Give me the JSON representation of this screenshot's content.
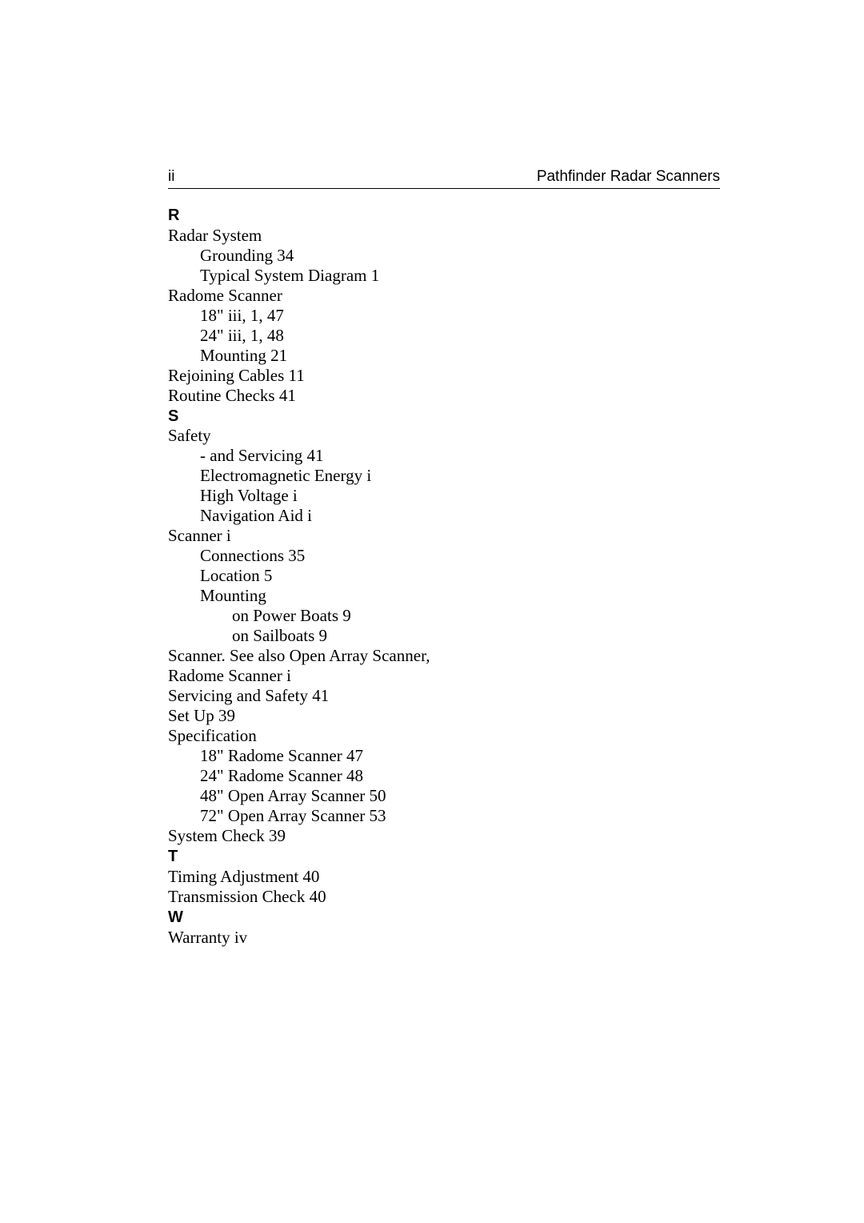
{
  "header": {
    "page_number": "ii",
    "title": "Pathfinder Radar Scanners"
  },
  "colors": {
    "text": "#000000",
    "background": "#ffffff",
    "rule": "#000000"
  },
  "typography": {
    "body_font": "Times New Roman",
    "heading_font": "Arial",
    "body_size_pt": 16,
    "heading_size_pt": 15,
    "letter_weight": 700
  },
  "index": [
    {
      "type": "letter",
      "text": "R"
    },
    {
      "type": "entry",
      "level": 0,
      "text": "Radar System"
    },
    {
      "type": "entry",
      "level": 1,
      "text": "Grounding 34"
    },
    {
      "type": "entry",
      "level": 1,
      "text": "Typical System Diagram 1"
    },
    {
      "type": "entry",
      "level": 0,
      "text": "Radome Scanner"
    },
    {
      "type": "entry",
      "level": 1,
      "text": "18\" iii, 1, 47"
    },
    {
      "type": "entry",
      "level": 1,
      "text": "24\" iii, 1, 48"
    },
    {
      "type": "entry",
      "level": 1,
      "text": "Mounting 21"
    },
    {
      "type": "entry",
      "level": 0,
      "text": "Rejoining Cables 11"
    },
    {
      "type": "entry",
      "level": 0,
      "text": "Routine Checks 41"
    },
    {
      "type": "letter",
      "text": "S"
    },
    {
      "type": "entry",
      "level": 0,
      "text": "Safety"
    },
    {
      "type": "entry",
      "level": 1,
      "text": "- and Servicing 41"
    },
    {
      "type": "entry",
      "level": 1,
      "text": "Electromagnetic Energy i"
    },
    {
      "type": "entry",
      "level": 1,
      "text": "High Voltage i"
    },
    {
      "type": "entry",
      "level": 1,
      "text": "Navigation Aid i"
    },
    {
      "type": "entry",
      "level": 0,
      "text": "Scanner i"
    },
    {
      "type": "entry",
      "level": 1,
      "text": "Connections 35"
    },
    {
      "type": "entry",
      "level": 1,
      "text": "Location 5"
    },
    {
      "type": "entry",
      "level": 1,
      "text": "Mounting"
    },
    {
      "type": "entry",
      "level": 2,
      "text": "on Power Boats 9"
    },
    {
      "type": "entry",
      "level": 2,
      "text": "on Sailboats 9"
    },
    {
      "type": "entry",
      "level": 0,
      "text": "Scanner. See also Open Array Scanner,"
    },
    {
      "type": "entry",
      "level": 0,
      "text": "Radome Scanner i"
    },
    {
      "type": "entry",
      "level": 0,
      "text": "Servicing and Safety 41"
    },
    {
      "type": "entry",
      "level": 0,
      "text": "Set Up 39"
    },
    {
      "type": "entry",
      "level": 0,
      "text": "Specification"
    },
    {
      "type": "entry",
      "level": 1,
      "text": "18\" Radome Scanner 47"
    },
    {
      "type": "entry",
      "level": 1,
      "text": "24\" Radome Scanner 48"
    },
    {
      "type": "entry",
      "level": 1,
      "text": "48\" Open Array Scanner 50"
    },
    {
      "type": "entry",
      "level": 1,
      "text": "72\" Open Array Scanner 53"
    },
    {
      "type": "entry",
      "level": 0,
      "text": "System Check 39"
    },
    {
      "type": "letter",
      "text": "T"
    },
    {
      "type": "entry",
      "level": 0,
      "text": "Timing Adjustment 40"
    },
    {
      "type": "entry",
      "level": 0,
      "text": "Transmission Check 40"
    },
    {
      "type": "letter",
      "text": "W"
    },
    {
      "type": "entry",
      "level": 0,
      "text": "Warranty iv"
    }
  ]
}
